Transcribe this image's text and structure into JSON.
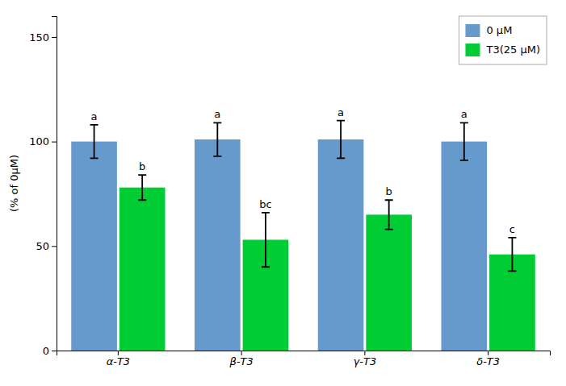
{
  "chart_data": {
    "type": "bar",
    "categories": [
      "α-T3",
      "β-T3",
      "γ-T3",
      "δ-T3"
    ],
    "series": [
      {
        "name": "0 μM",
        "color": "#6699CC",
        "values": [
          100,
          101,
          101,
          100
        ],
        "errors": [
          8,
          8,
          9,
          9
        ],
        "annotations": [
          "a",
          "a",
          "a",
          "a"
        ]
      },
      {
        "name": "T3(25 μM)",
        "color": "#00CC33",
        "values": [
          78,
          53,
          65,
          46
        ],
        "errors": [
          6,
          13,
          7,
          8
        ],
        "annotations": [
          "b",
          "bc",
          "b",
          "c"
        ]
      }
    ],
    "ylabel": "(% of 0μM)",
    "ylim": [
      0,
      160
    ],
    "yticks": [
      0,
      50,
      100,
      150
    ],
    "legend": "upper right",
    "grid": false
  }
}
